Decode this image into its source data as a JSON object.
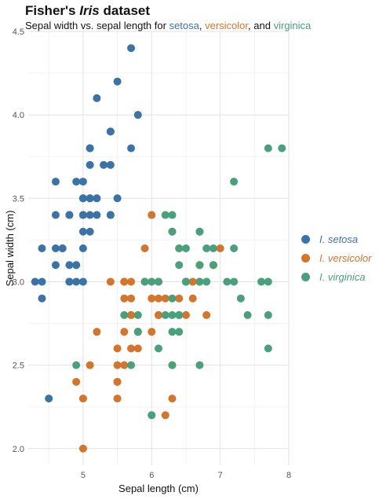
{
  "title": {
    "prefix": "Fisher's ",
    "italic": "Iris",
    "suffix": " dataset"
  },
  "subtitle": {
    "text": "Sepal width vs. sepal length for ",
    "setosa": "setosa",
    "sep1": ", ",
    "versicolor": "versicolor",
    "sep2": ", and ",
    "virginica": "virginica"
  },
  "chart_data": {
    "type": "scatter",
    "xlabel": "Sepal length (cm)",
    "ylabel": "Sepal width (cm)",
    "xlim": [
      4.2,
      8.0
    ],
    "ylim": [
      1.9,
      4.5
    ],
    "x_ticks": [
      5,
      6,
      7,
      8
    ],
    "y_ticks": [
      2.0,
      2.5,
      3.0,
      3.5,
      4.0,
      4.5
    ],
    "grid": true,
    "legend_position": "right",
    "series": [
      {
        "name": "I. setosa",
        "color": "#3a73a8",
        "points": [
          [
            5.1,
            3.5
          ],
          [
            4.9,
            3.0
          ],
          [
            4.7,
            3.2
          ],
          [
            4.6,
            3.1
          ],
          [
            5.0,
            3.6
          ],
          [
            5.4,
            3.9
          ],
          [
            4.6,
            3.4
          ],
          [
            5.0,
            3.4
          ],
          [
            4.4,
            2.9
          ],
          [
            4.9,
            3.1
          ],
          [
            5.4,
            3.7
          ],
          [
            4.8,
            3.4
          ],
          [
            4.8,
            3.0
          ],
          [
            4.3,
            3.0
          ],
          [
            5.8,
            4.0
          ],
          [
            5.7,
            4.4
          ],
          [
            5.4,
            3.9
          ],
          [
            5.1,
            3.5
          ],
          [
            5.7,
            3.8
          ],
          [
            5.1,
            3.8
          ],
          [
            5.4,
            3.4
          ],
          [
            5.1,
            3.7
          ],
          [
            4.6,
            3.6
          ],
          [
            5.1,
            3.3
          ],
          [
            4.8,
            3.4
          ],
          [
            5.0,
            3.0
          ],
          [
            5.0,
            3.4
          ],
          [
            5.2,
            3.5
          ],
          [
            5.2,
            3.4
          ],
          [
            4.7,
            3.2
          ],
          [
            4.8,
            3.1
          ],
          [
            5.4,
            3.4
          ],
          [
            5.2,
            4.1
          ],
          [
            5.5,
            4.2
          ],
          [
            4.9,
            3.1
          ],
          [
            5.0,
            3.2
          ],
          [
            5.5,
            3.5
          ],
          [
            4.9,
            3.6
          ],
          [
            4.4,
            3.0
          ],
          [
            5.1,
            3.4
          ],
          [
            5.0,
            3.5
          ],
          [
            4.5,
            2.3
          ],
          [
            4.4,
            3.2
          ],
          [
            5.0,
            3.5
          ],
          [
            5.1,
            3.8
          ],
          [
            4.8,
            3.0
          ],
          [
            5.1,
            3.8
          ],
          [
            4.6,
            3.2
          ],
          [
            5.3,
            3.7
          ],
          [
            5.0,
            3.3
          ]
        ]
      },
      {
        "name": "I. versicolor",
        "color": "#d4752b",
        "points": [
          [
            7.0,
            3.2
          ],
          [
            6.4,
            3.2
          ],
          [
            6.9,
            3.1
          ],
          [
            5.5,
            2.3
          ],
          [
            6.5,
            2.8
          ],
          [
            5.7,
            2.8
          ],
          [
            6.3,
            3.3
          ],
          [
            4.9,
            2.4
          ],
          [
            6.6,
            2.9
          ],
          [
            5.2,
            2.7
          ],
          [
            5.0,
            2.0
          ],
          [
            5.9,
            3.0
          ],
          [
            6.0,
            2.2
          ],
          [
            6.1,
            2.9
          ],
          [
            5.6,
            2.9
          ],
          [
            6.7,
            3.1
          ],
          [
            5.6,
            3.0
          ],
          [
            5.8,
            2.7
          ],
          [
            6.2,
            2.2
          ],
          [
            5.6,
            2.5
          ],
          [
            5.9,
            3.2
          ],
          [
            6.1,
            2.8
          ],
          [
            6.3,
            2.5
          ],
          [
            6.1,
            2.8
          ],
          [
            6.4,
            2.9
          ],
          [
            6.6,
            3.0
          ],
          [
            6.8,
            2.8
          ],
          [
            6.7,
            3.0
          ],
          [
            6.0,
            2.9
          ],
          [
            5.7,
            2.6
          ],
          [
            5.5,
            2.4
          ],
          [
            5.5,
            2.4
          ],
          [
            5.8,
            2.7
          ],
          [
            6.0,
            2.7
          ],
          [
            5.4,
            3.0
          ],
          [
            6.0,
            3.4
          ],
          [
            6.7,
            3.1
          ],
          [
            6.3,
            2.3
          ],
          [
            5.6,
            3.0
          ],
          [
            5.5,
            2.5
          ],
          [
            5.5,
            2.6
          ],
          [
            6.1,
            3.0
          ],
          [
            5.8,
            2.6
          ],
          [
            5.0,
            2.3
          ],
          [
            5.6,
            2.7
          ],
          [
            5.7,
            3.0
          ],
          [
            5.7,
            2.9
          ],
          [
            6.2,
            2.9
          ],
          [
            5.1,
            2.5
          ],
          [
            5.7,
            2.8
          ]
        ]
      },
      {
        "name": "I. virginica",
        "color": "#48a07c",
        "points": [
          [
            6.3,
            3.3
          ],
          [
            5.8,
            2.7
          ],
          [
            7.1,
            3.0
          ],
          [
            6.3,
            2.9
          ],
          [
            6.5,
            3.0
          ],
          [
            7.6,
            3.0
          ],
          [
            4.9,
            2.5
          ],
          [
            7.3,
            2.9
          ],
          [
            6.7,
            2.5
          ],
          [
            7.2,
            3.6
          ],
          [
            6.5,
            3.2
          ],
          [
            6.4,
            2.7
          ],
          [
            6.8,
            3.0
          ],
          [
            5.7,
            2.5
          ],
          [
            5.8,
            2.8
          ],
          [
            6.4,
            3.2
          ],
          [
            6.5,
            3.0
          ],
          [
            7.7,
            3.8
          ],
          [
            7.7,
            2.6
          ],
          [
            6.0,
            2.2
          ],
          [
            6.9,
            3.2
          ],
          [
            5.6,
            2.8
          ],
          [
            7.7,
            2.8
          ],
          [
            6.3,
            2.7
          ],
          [
            6.7,
            3.3
          ],
          [
            7.2,
            3.2
          ],
          [
            6.2,
            2.8
          ],
          [
            6.1,
            3.0
          ],
          [
            6.4,
            2.8
          ],
          [
            7.2,
            3.0
          ],
          [
            7.4,
            2.8
          ],
          [
            7.9,
            3.8
          ],
          [
            6.4,
            2.8
          ],
          [
            6.3,
            2.8
          ],
          [
            6.1,
            2.6
          ],
          [
            7.7,
            3.0
          ],
          [
            6.3,
            3.4
          ],
          [
            6.4,
            3.1
          ],
          [
            6.0,
            3.0
          ],
          [
            6.9,
            3.1
          ],
          [
            6.7,
            3.1
          ],
          [
            6.9,
            3.1
          ],
          [
            5.8,
            2.7
          ],
          [
            6.8,
            3.2
          ],
          [
            6.7,
            3.3
          ],
          [
            6.7,
            3.0
          ],
          [
            6.3,
            2.5
          ],
          [
            6.5,
            3.0
          ],
          [
            6.2,
            3.4
          ],
          [
            5.9,
            3.0
          ]
        ]
      }
    ]
  }
}
